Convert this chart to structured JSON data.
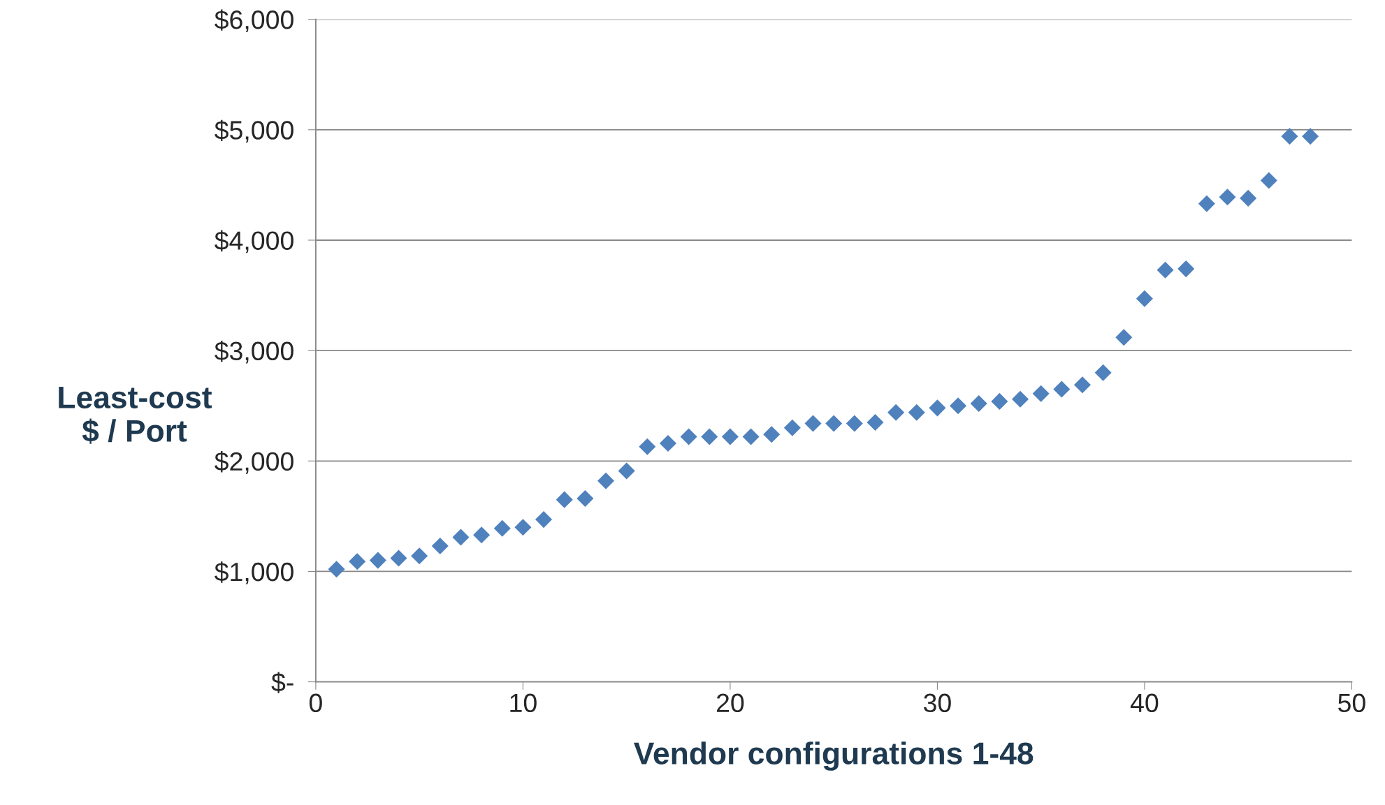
{
  "chart_data": {
    "type": "scatter",
    "xlabel": "Vendor configurations 1-48",
    "ylabel": "Least-cost\n$ / Port",
    "x": [
      1,
      2,
      3,
      4,
      5,
      6,
      7,
      8,
      9,
      10,
      11,
      12,
      13,
      14,
      15,
      16,
      17,
      18,
      19,
      20,
      21,
      22,
      23,
      24,
      25,
      26,
      27,
      28,
      29,
      30,
      31,
      32,
      33,
      34,
      35,
      36,
      37,
      38,
      39,
      40,
      41,
      42,
      43,
      44,
      45,
      46,
      47,
      48
    ],
    "values": [
      1020,
      1090,
      1100,
      1120,
      1140,
      1230,
      1310,
      1330,
      1390,
      1400,
      1470,
      1650,
      1660,
      1820,
      1910,
      2130,
      2160,
      2220,
      2220,
      2220,
      2220,
      2240,
      2300,
      2340,
      2340,
      2340,
      2350,
      2440,
      2440,
      2480,
      2500,
      2520,
      2540,
      2560,
      2610,
      2650,
      2690,
      2800,
      3120,
      3470,
      3730,
      3740,
      4330,
      4390,
      4380,
      4540,
      4940,
      4940
    ],
    "color": "#4f81bd",
    "marker": "diamond",
    "xlim": [
      0,
      50
    ],
    "xticks": [
      0,
      10,
      20,
      30,
      40,
      50
    ],
    "ylim": [
      0,
      6000
    ],
    "yticks": [
      {
        "value": 0,
        "label": "$-"
      },
      {
        "value": 1000,
        "label": "$1,000"
      },
      {
        "value": 2000,
        "label": "$2,000"
      },
      {
        "value": 3000,
        "label": "$3,000"
      },
      {
        "value": 4000,
        "label": "$4,000"
      },
      {
        "value": 5000,
        "label": "$5,000"
      },
      {
        "value": 6000,
        "label": "$6,000"
      }
    ],
    "grid": "y",
    "legend": false
  }
}
